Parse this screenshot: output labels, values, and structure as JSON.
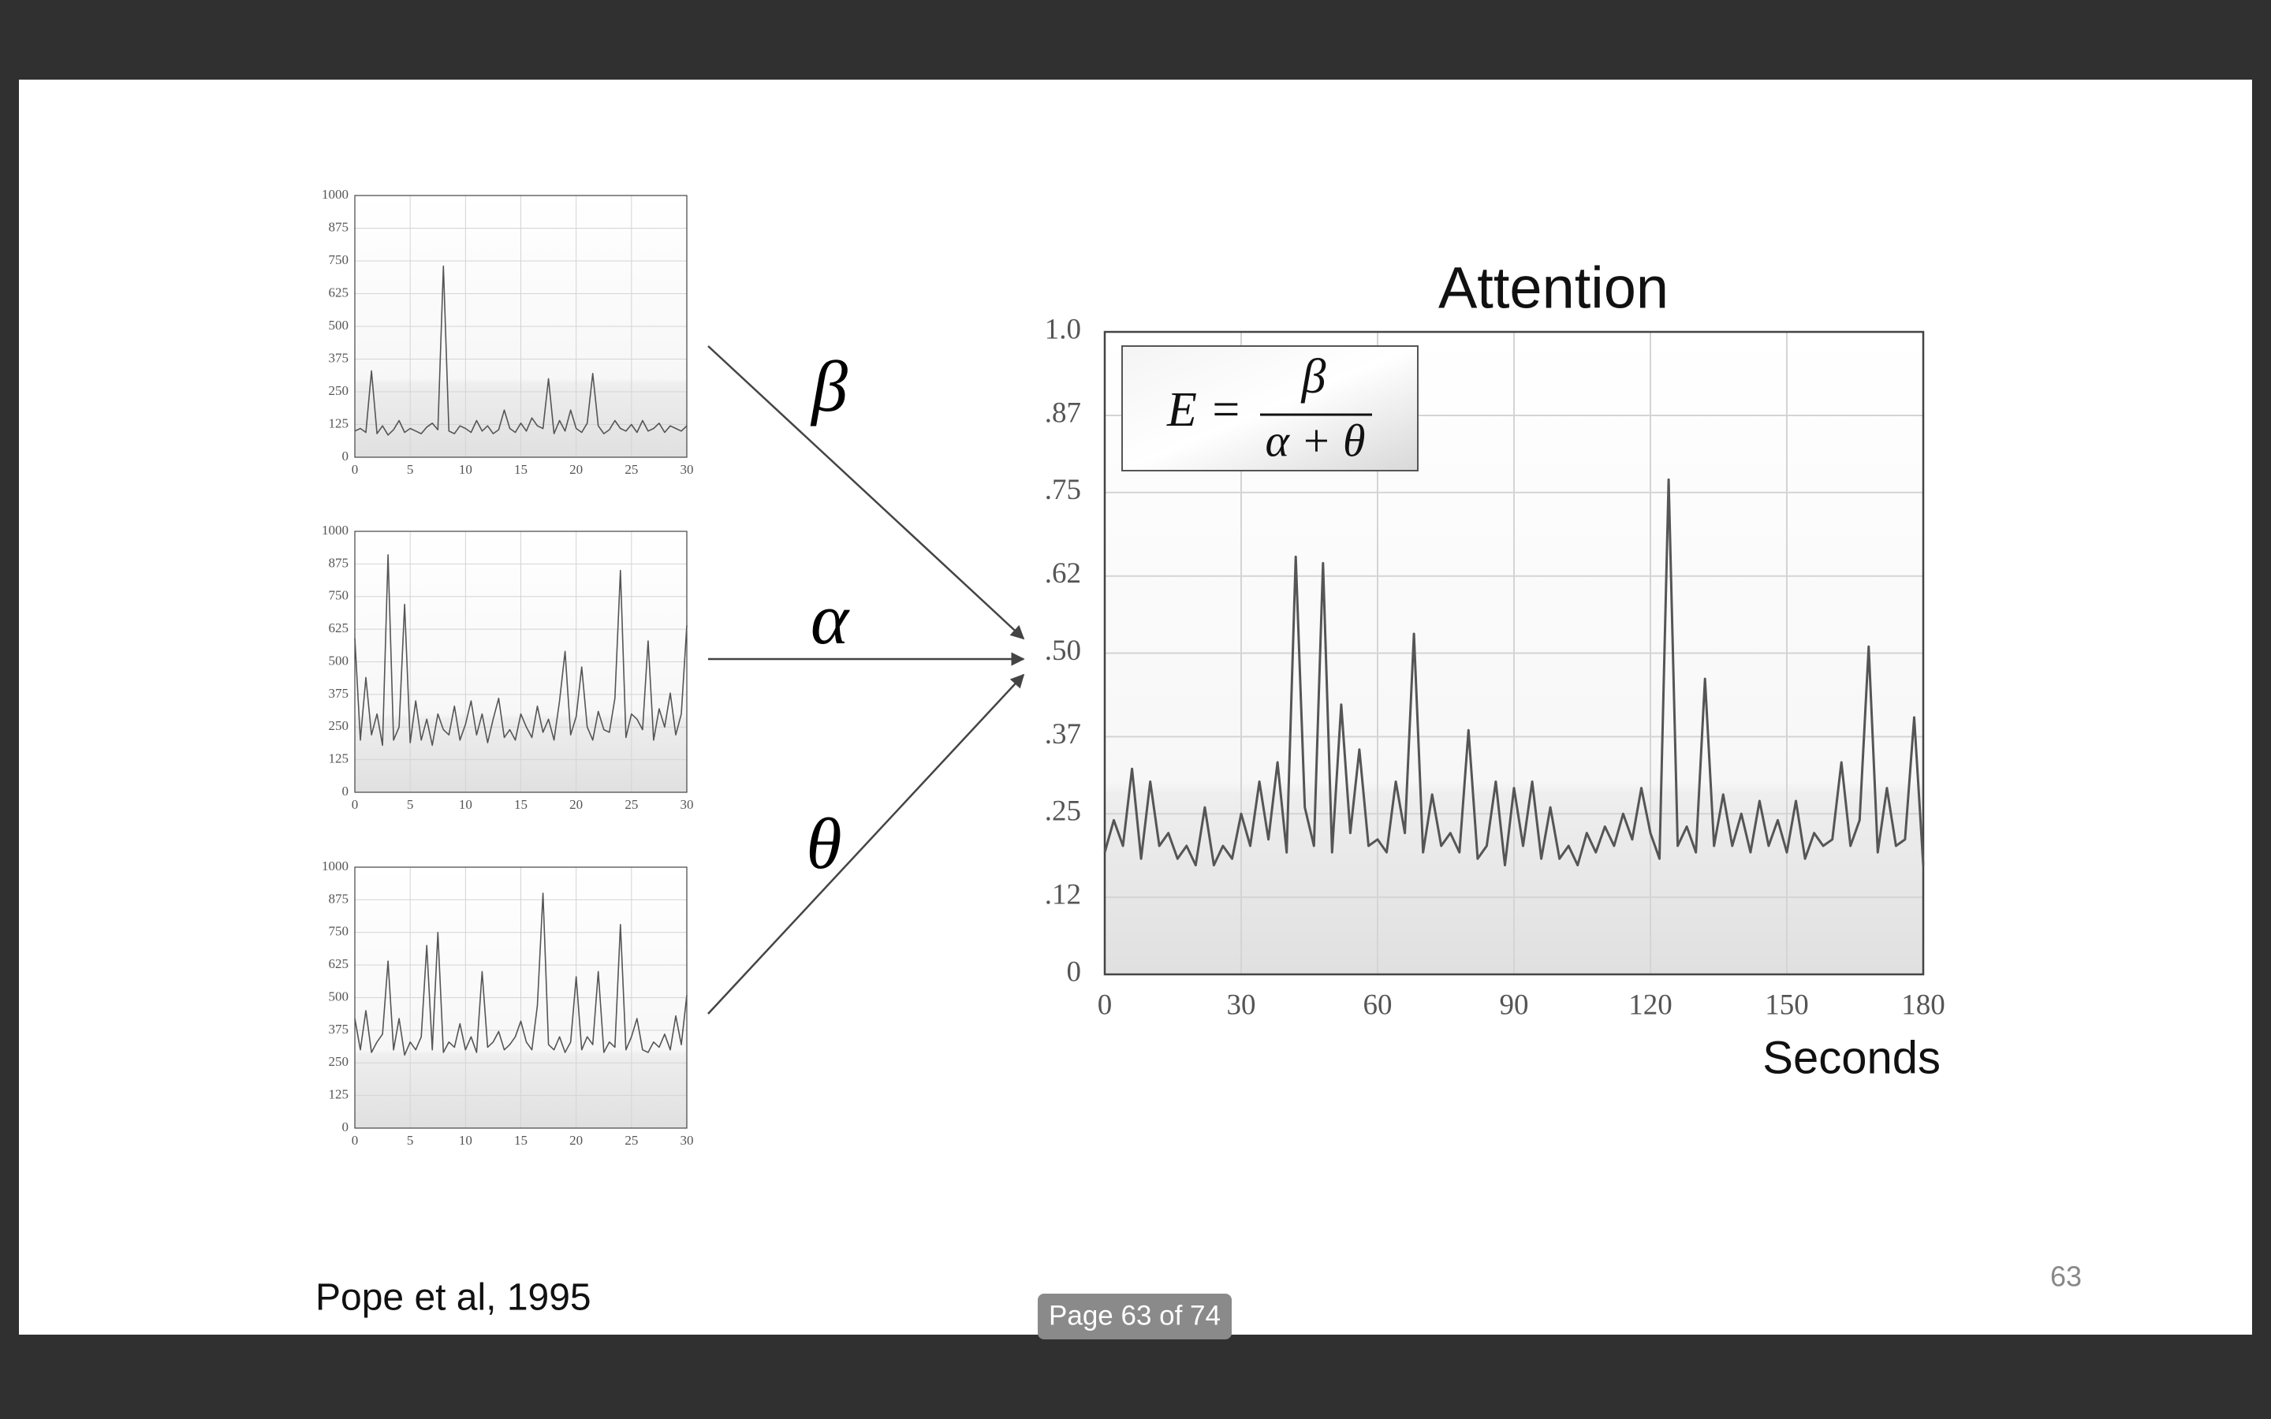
{
  "chart_data": [
    {
      "type": "line",
      "color": "#555555",
      "x": [
        0,
        0.5,
        1,
        1.5,
        2,
        2.5,
        3,
        3.5,
        4,
        4.5,
        5,
        5.5,
        6,
        6.5,
        7,
        7.5,
        8,
        8.5,
        9,
        9.5,
        10,
        10.5,
        11,
        11.5,
        12,
        12.5,
        13,
        13.5,
        14,
        14.5,
        15,
        15.5,
        16,
        16.5,
        17,
        17.5,
        18,
        18.5,
        19,
        19.5,
        20,
        20.5,
        21,
        21.5,
        22,
        22.5,
        23,
        23.5,
        24,
        24.5,
        25,
        25.5,
        26,
        26.5,
        27,
        27.5,
        28,
        28.5,
        29,
        29.5,
        30
      ],
      "values": [
        100,
        110,
        95,
        330,
        90,
        120,
        85,
        105,
        140,
        95,
        110,
        100,
        90,
        115,
        130,
        105,
        730,
        100,
        90,
        120,
        110,
        95,
        140,
        100,
        120,
        90,
        105,
        180,
        110,
        95,
        130,
        100,
        150,
        120,
        110,
        300,
        90,
        140,
        100,
        180,
        110,
        95,
        130,
        320,
        120,
        90,
        105,
        140,
        110,
        100,
        125,
        95,
        140,
        100,
        110,
        130,
        95,
        120,
        110,
        100,
        120
      ],
      "xlim": [
        0,
        30
      ],
      "xticks": [
        0,
        5,
        10,
        15,
        20,
        25,
        30
      ],
      "ylim": [
        0,
        1000
      ],
      "yticks": [
        0,
        125,
        250,
        375,
        500,
        625,
        750,
        875,
        1000
      ],
      "grid": true
    },
    {
      "type": "line",
      "color": "#555555",
      "x": [
        0,
        0.5,
        1,
        1.5,
        2,
        2.5,
        3,
        3.5,
        4,
        4.5,
        5,
        5.5,
        6,
        6.5,
        7,
        7.5,
        8,
        8.5,
        9,
        9.5,
        10,
        10.5,
        11,
        11.5,
        12,
        12.5,
        13,
        13.5,
        14,
        14.5,
        15,
        15.5,
        16,
        16.5,
        17,
        17.5,
        18,
        18.5,
        19,
        19.5,
        20,
        20.5,
        21,
        21.5,
        22,
        22.5,
        23,
        23.5,
        24,
        24.5,
        25,
        25.5,
        26,
        26.5,
        27,
        27.5,
        28,
        28.5,
        29,
        29.5,
        30
      ],
      "values": [
        590,
        200,
        440,
        220,
        300,
        180,
        910,
        200,
        250,
        720,
        190,
        350,
        200,
        280,
        180,
        300,
        240,
        220,
        330,
        200,
        260,
        350,
        220,
        300,
        190,
        280,
        360,
        210,
        240,
        200,
        300,
        250,
        210,
        330,
        230,
        280,
        200,
        350,
        540,
        220,
        290,
        480,
        250,
        200,
        310,
        240,
        230,
        360,
        850,
        210,
        300,
        280,
        240,
        580,
        200,
        320,
        250,
        380,
        220,
        300,
        640
      ],
      "xlim": [
        0,
        30
      ],
      "xticks": [
        0,
        5,
        10,
        15,
        20,
        25,
        30
      ],
      "ylim": [
        0,
        1000
      ],
      "yticks": [
        0,
        125,
        250,
        375,
        500,
        625,
        750,
        875,
        1000
      ],
      "grid": true
    },
    {
      "type": "line",
      "color": "#555555",
      "x": [
        0,
        0.5,
        1,
        1.5,
        2,
        2.5,
        3,
        3.5,
        4,
        4.5,
        5,
        5.5,
        6,
        6.5,
        7,
        7.5,
        8,
        8.5,
        9,
        9.5,
        10,
        10.5,
        11,
        11.5,
        12,
        12.5,
        13,
        13.5,
        14,
        14.5,
        15,
        15.5,
        16,
        16.5,
        17,
        17.5,
        18,
        18.5,
        19,
        19.5,
        20,
        20.5,
        21,
        21.5,
        22,
        22.5,
        23,
        23.5,
        24,
        24.5,
        25,
        25.5,
        26,
        26.5,
        27,
        27.5,
        28,
        28.5,
        29,
        29.5,
        30
      ],
      "values": [
        420,
        300,
        450,
        290,
        330,
        360,
        640,
        300,
        420,
        280,
        330,
        300,
        350,
        700,
        300,
        750,
        290,
        330,
        310,
        400,
        300,
        350,
        290,
        600,
        310,
        330,
        370,
        300,
        320,
        350,
        410,
        330,
        300,
        470,
        900,
        320,
        300,
        350,
        290,
        330,
        580,
        300,
        350,
        320,
        600,
        290,
        330,
        310,
        780,
        300,
        350,
        420,
        300,
        290,
        330,
        310,
        360,
        300,
        430,
        320,
        510
      ],
      "xlim": [
        0,
        30
      ],
      "xticks": [
        0,
        5,
        10,
        15,
        20,
        25,
        30
      ],
      "ylim": [
        0,
        1000
      ],
      "yticks": [
        0,
        125,
        250,
        375,
        500,
        625,
        750,
        875,
        1000
      ],
      "grid": true
    },
    {
      "type": "line",
      "title": "Attention",
      "x_label": "Seconds",
      "color": "#555555",
      "annotation": {
        "lhs": "E =",
        "numerator": "β",
        "denominator": "α + θ"
      },
      "x": [
        0,
        2,
        4,
        6,
        8,
        10,
        12,
        14,
        16,
        18,
        20,
        22,
        24,
        26,
        28,
        30,
        32,
        34,
        36,
        38,
        40,
        42,
        44,
        46,
        48,
        50,
        52,
        54,
        56,
        58,
        60,
        62,
        64,
        66,
        68,
        70,
        72,
        74,
        76,
        78,
        80,
        82,
        84,
        86,
        88,
        90,
        92,
        94,
        96,
        98,
        100,
        102,
        104,
        106,
        108,
        110,
        112,
        114,
        116,
        118,
        120,
        122,
        124,
        126,
        128,
        130,
        132,
        134,
        136,
        138,
        140,
        142,
        144,
        146,
        148,
        150,
        152,
        154,
        156,
        158,
        160,
        162,
        164,
        166,
        168,
        170,
        172,
        174,
        176,
        178,
        180
      ],
      "values": [
        0.19,
        0.24,
        0.2,
        0.32,
        0.18,
        0.3,
        0.2,
        0.22,
        0.18,
        0.2,
        0.17,
        0.26,
        0.17,
        0.2,
        0.18,
        0.25,
        0.2,
        0.3,
        0.21,
        0.33,
        0.19,
        0.65,
        0.26,
        0.2,
        0.64,
        0.19,
        0.42,
        0.22,
        0.35,
        0.2,
        0.21,
        0.19,
        0.3,
        0.22,
        0.53,
        0.19,
        0.28,
        0.2,
        0.22,
        0.19,
        0.38,
        0.18,
        0.2,
        0.3,
        0.17,
        0.29,
        0.2,
        0.3,
        0.18,
        0.26,
        0.18,
        0.2,
        0.17,
        0.22,
        0.19,
        0.23,
        0.2,
        0.25,
        0.21,
        0.29,
        0.22,
        0.18,
        0.77,
        0.2,
        0.23,
        0.19,
        0.46,
        0.2,
        0.28,
        0.2,
        0.25,
        0.19,
        0.27,
        0.2,
        0.24,
        0.19,
        0.27,
        0.18,
        0.22,
        0.2,
        0.21,
        0.33,
        0.2,
        0.24,
        0.51,
        0.19,
        0.29,
        0.2,
        0.21,
        0.4,
        0.17
      ],
      "xlim": [
        0,
        180
      ],
      "xticks": [
        0,
        30,
        60,
        90,
        120,
        150,
        180
      ],
      "ylim": [
        0,
        1
      ],
      "yticks": [
        0,
        {
          "value": 0.12,
          "label": ".12"
        },
        {
          "value": 0.25,
          "label": ".25"
        },
        {
          "value": 0.37,
          "label": ".37"
        },
        {
          "value": 0.5,
          "label": ".50"
        },
        {
          "value": 0.62,
          "label": ".62"
        },
        {
          "value": 0.75,
          "label": ".75"
        },
        {
          "value": 0.87,
          "label": ".87"
        },
        {
          "value": 1,
          "label": "1.0"
        }
      ],
      "grid": true
    }
  ],
  "slide": {
    "arrow_labels": [
      "β",
      "α",
      "θ"
    ],
    "citation": "Pope et al, 1995",
    "page_number": "63"
  },
  "viewer": {
    "page_indicator": "Page 63 of 74"
  }
}
